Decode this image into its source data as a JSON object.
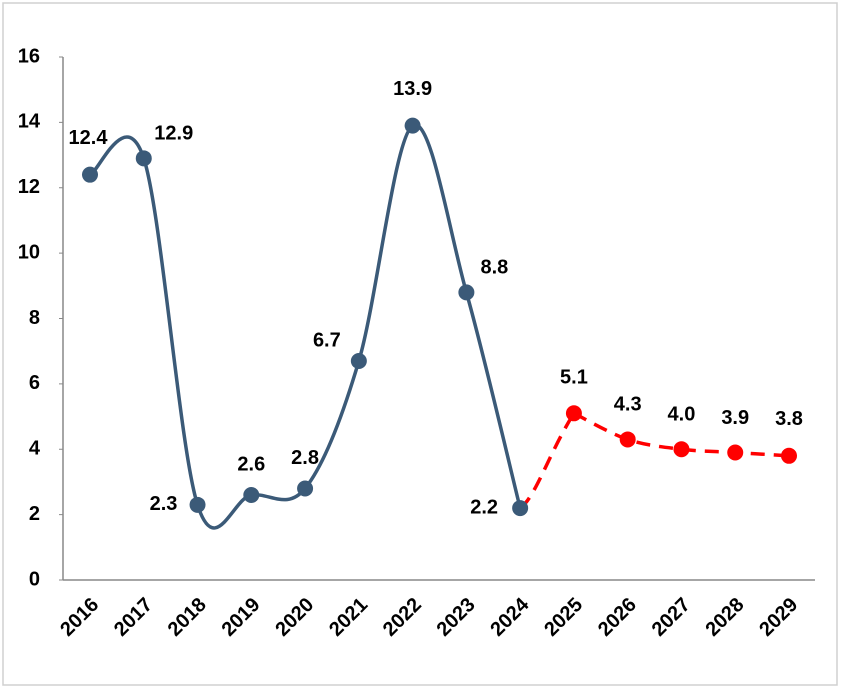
{
  "chart_data": {
    "type": "line",
    "categories": [
      "2016",
      "2017",
      "2018",
      "2019",
      "2020",
      "2021",
      "2022",
      "2023",
      "2024",
      "2025",
      "2026",
      "2027",
      "2028",
      "2029"
    ],
    "series": [
      {
        "color": "#3b5a78",
        "values": [
          12.4,
          12.9,
          2.3,
          2.6,
          2.8,
          6.7,
          13.9,
          8.8,
          2.2,
          null,
          null,
          null,
          null,
          null
        ]
      },
      {
        "color": "#ff0000",
        "dashed": true,
        "values": [
          null,
          null,
          null,
          null,
          null,
          null,
          null,
          null,
          null,
          5.1,
          4.3,
          4.0,
          3.9,
          3.8
        ],
        "value_labels": [
          null,
          null,
          null,
          null,
          null,
          null,
          null,
          null,
          null,
          "5.1",
          "4.3",
          "4.0",
          "3.9",
          "3.8"
        ]
      }
    ],
    "ylim": [
      0,
      16
    ],
    "yticks": [
      0,
      2,
      4,
      6,
      8,
      10,
      12,
      14,
      16
    ]
  }
}
